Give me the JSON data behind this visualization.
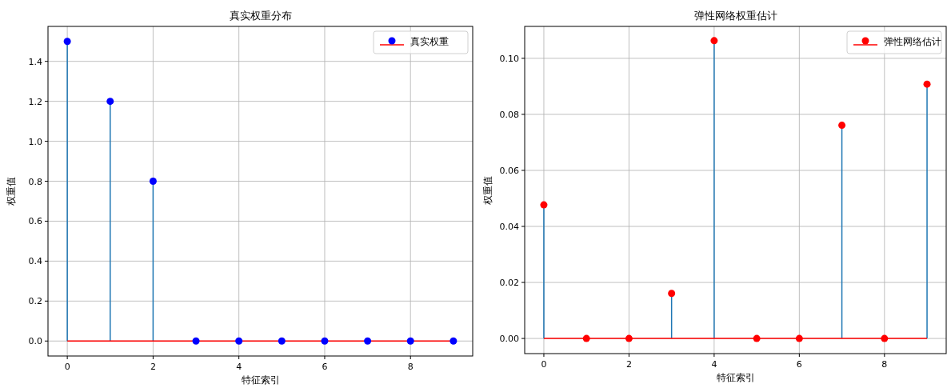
{
  "chart_data": [
    {
      "type": "lollipop",
      "title": "真实权重分布",
      "xlabel": "特征索引",
      "ylabel": "权重值",
      "x": [
        0,
        1,
        2,
        3,
        4,
        5,
        6,
        7,
        8,
        9
      ],
      "series": [
        {
          "name": "真实权重",
          "color": "#0000ff",
          "values": [
            1.5,
            1.2,
            0.8,
            0,
            0,
            0,
            0,
            0,
            0,
            0
          ]
        }
      ],
      "xlim": [
        -0.45,
        9.45
      ],
      "ylim": [
        -0.075,
        1.575
      ],
      "xticks": [
        0,
        2,
        4,
        6,
        8
      ],
      "yticks": [
        {
          "value": 0,
          "label": "0.0"
        },
        {
          "value": 0.2,
          "label": "0.2"
        },
        {
          "value": 0.4,
          "label": "0.4"
        },
        {
          "value": 0.6,
          "label": "0.6"
        },
        {
          "value": 0.8,
          "label": "0.8"
        },
        {
          "value": 1,
          "label": "1.0"
        },
        {
          "value": 1.2,
          "label": "1.2"
        },
        {
          "value": 1.4,
          "label": "1.4"
        }
      ],
      "ref_lines": [
        {
          "axis": "y",
          "value": 0,
          "color": "#ff0000"
        }
      ],
      "grid": true,
      "legend": "top right",
      "marker": "circle"
    },
    {
      "type": "lollipop",
      "title": "弹性网络权重估计",
      "xlabel": "特征索引",
      "ylabel": "权重值",
      "x": [
        0,
        1,
        2,
        3,
        4,
        5,
        6,
        7,
        8,
        9
      ],
      "series": [
        {
          "name": "弹性网络估计",
          "color": "#ff0000",
          "values": [
            0.0477,
            0,
            0,
            0.0161,
            0.1063,
            0,
            0,
            0.0761,
            0,
            0.0908
          ]
        }
      ],
      "xlim": [
        -0.45,
        9.45
      ],
      "ylim": [
        -0.0054,
        0.1114
      ],
      "xticks": [
        0,
        2,
        4,
        6,
        8
      ],
      "yticks": [
        {
          "value": 0,
          "label": "0.00"
        },
        {
          "value": 0.02,
          "label": "0.02"
        },
        {
          "value": 0.04,
          "label": "0.04"
        },
        {
          "value": 0.06,
          "label": "0.06"
        },
        {
          "value": 0.08,
          "label": "0.08"
        },
        {
          "value": 0.1,
          "label": "0.10"
        }
      ],
      "ref_lines": [
        {
          "axis": "y",
          "value": 0,
          "color": "#ff0000"
        }
      ],
      "grid": true,
      "legend": "top right",
      "marker": "circle"
    }
  ]
}
